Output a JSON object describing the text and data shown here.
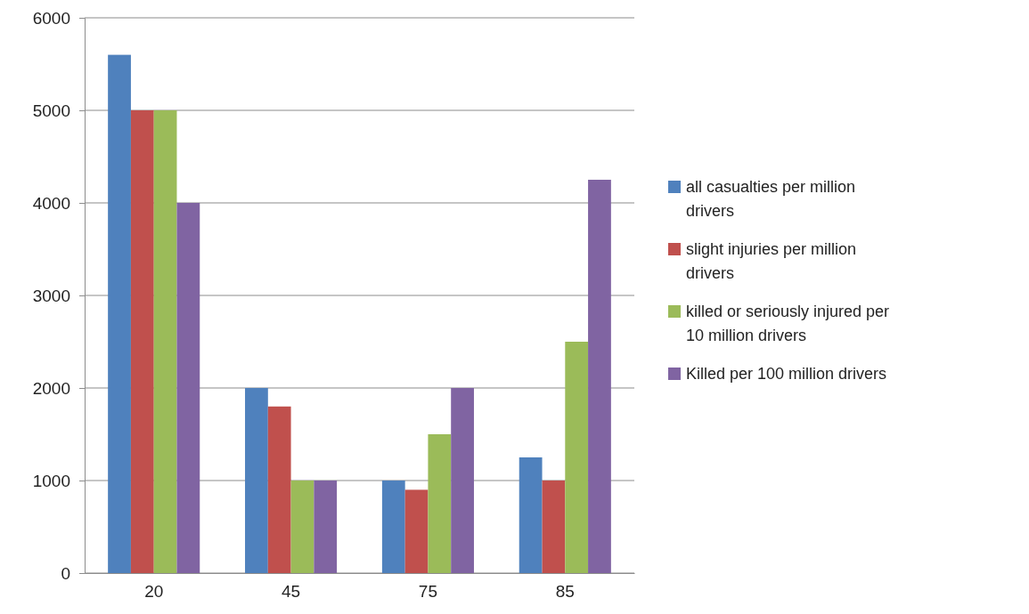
{
  "chart_data": {
    "type": "bar",
    "categories": [
      "20",
      "45",
      "75",
      "85"
    ],
    "series": [
      {
        "name": "all casualties per million drivers",
        "color": "#4f81bd",
        "values": [
          5600,
          2000,
          1000,
          1250
        ]
      },
      {
        "name": "slight injuries per million drivers",
        "color": "#c0504d",
        "values": [
          5000,
          1800,
          900,
          1000
        ]
      },
      {
        "name": "killed or seriously injured per 10 million drivers",
        "color": "#9bbb59",
        "values": [
          5000,
          1000,
          1500,
          2500
        ]
      },
      {
        "name": "Killed per 100 million drivers",
        "color": "#8064a2",
        "values": [
          4000,
          1000,
          2000,
          4250
        ]
      }
    ],
    "ylim": [
      0,
      6000
    ],
    "yticks": [
      0,
      1000,
      2000,
      3000,
      4000,
      5000,
      6000
    ],
    "grid": "y",
    "legend": "right"
  }
}
